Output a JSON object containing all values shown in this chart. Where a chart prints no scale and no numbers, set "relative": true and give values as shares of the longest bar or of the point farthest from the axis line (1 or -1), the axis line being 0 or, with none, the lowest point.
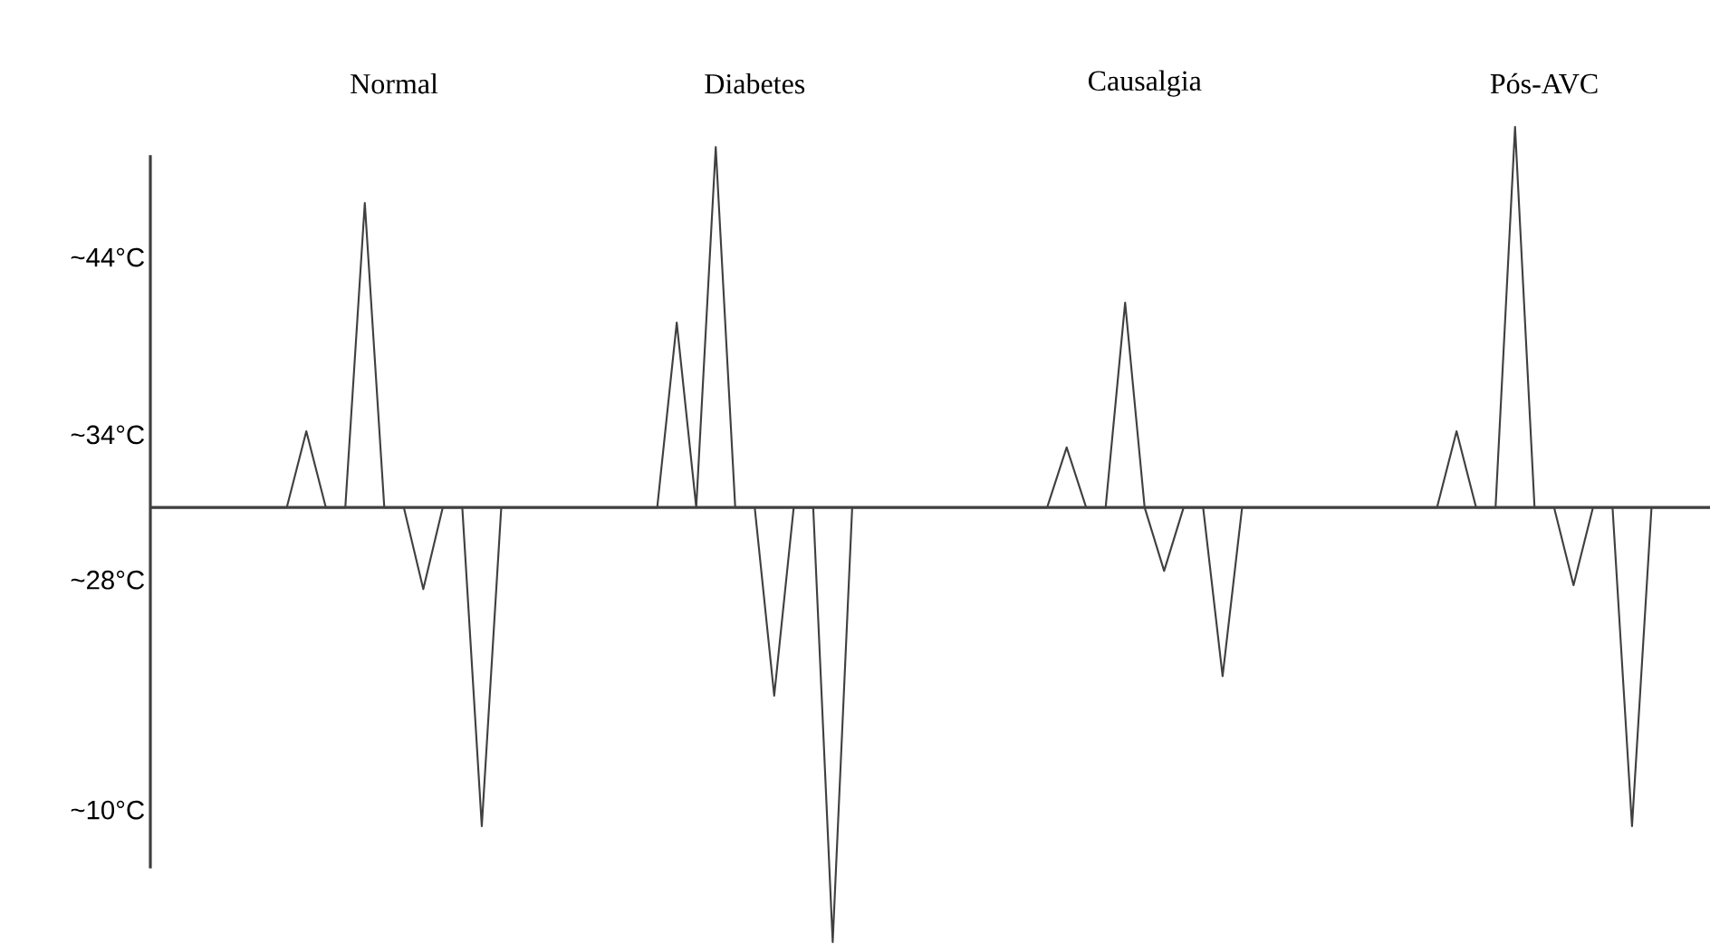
{
  "chart_data": {
    "type": "line",
    "relative": true,
    "color": "#404040",
    "categories": [
      null,
      null,
      null,
      null,
      null,
      null,
      null,
      null,
      null,
      null,
      null,
      null,
      null,
      null,
      null,
      null,
      null,
      null,
      null,
      null,
      null,
      null,
      null,
      null,
      null,
      null,
      null,
      null,
      null,
      null,
      null,
      null,
      null,
      null,
      null,
      null,
      null,
      null,
      null,
      null,
      null,
      null,
      null,
      null,
      null,
      null,
      null,
      null,
      null,
      null,
      null,
      null,
      null,
      null,
      null,
      null,
      null,
      null,
      null,
      null,
      null,
      null,
      null,
      null,
      null,
      null,
      null,
      null,
      null,
      null,
      null,
      null,
      null,
      null,
      null,
      null,
      null,
      null,
      null,
      null,
      null
    ],
    "values": [
      0,
      0,
      0,
      0,
      0,
      0,
      0,
      0,
      0.175,
      0,
      0,
      0.7,
      0,
      0,
      -0.188,
      0,
      0,
      -0.733,
      0,
      0,
      0,
      0,
      0,
      0,
      0,
      0,
      0,
      0.425,
      0,
      0.829,
      0,
      0,
      -0.433,
      0,
      0,
      -1,
      0,
      0,
      0,
      0,
      0,
      0,
      0,
      0,
      0,
      0,
      0,
      0.138,
      0,
      0,
      0.471,
      0,
      -0.146,
      0,
      0,
      -0.388,
      0,
      0,
      0,
      0,
      0,
      0,
      0,
      0,
      0,
      0,
      0,
      0.175,
      0,
      0,
      0.875,
      0,
      0,
      -0.179,
      0,
      0,
      -0.733,
      0,
      0,
      0,
      0
    ],
    "annotations": [
      "Normal",
      "Diabetes",
      "Causalgia",
      "Pós-AVC",
      "~44°C",
      "~34°C",
      "~28°C",
      "~10°C"
    ]
  }
}
